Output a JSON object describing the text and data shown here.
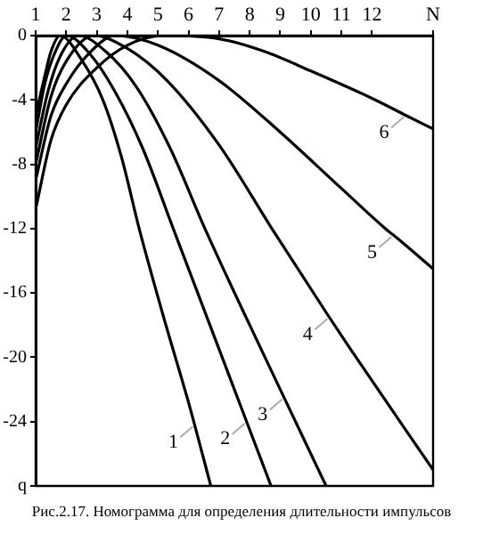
{
  "chart_data": {
    "type": "line",
    "series": [
      {
        "color": "#000000",
        "x": [
          1,
          1.3,
          1.5,
          1.8,
          2.5,
          3.2,
          3.8,
          4.4,
          5.2,
          6.0,
          6.2,
          6.73
        ],
        "values": [
          -5,
          -2.5,
          -1,
          0,
          -1.5,
          -4,
          -7.5,
          -12.1,
          -17.6,
          -22.8,
          -24.2,
          -28
        ]
      },
      {
        "color": "#000000",
        "x": [
          1,
          1.3,
          1.6,
          2.0,
          2.8,
          3.6,
          4.5,
          5.52,
          7.1,
          7.9,
          8.7
        ],
        "values": [
          -6,
          -3,
          -1.2,
          0,
          -1.2,
          -3.5,
          -7,
          -12.1,
          -20,
          -24,
          -28
        ]
      },
      {
        "color": "#000000",
        "x": [
          1,
          1.4,
          1.8,
          2.4,
          3.3,
          4.3,
          5.4,
          6.56,
          8.5,
          9.125,
          10.5
        ],
        "values": [
          -7,
          -3.5,
          -1.3,
          0,
          -1,
          -3.2,
          -7,
          -12.1,
          -20,
          -22.5,
          -28
        ]
      },
      {
        "color": "#000000",
        "x": [
          1,
          1.5,
          2.0,
          2.9,
          4,
          5.3,
          7,
          8.76,
          10.6,
          11.3,
          14
        ],
        "values": [
          -8,
          -3.8,
          -1.6,
          0,
          -0.8,
          -2.8,
          -6.8,
          -12.1,
          -17.5,
          -19.5,
          -27
        ]
      },
      {
        "color": "#000000",
        "x": [
          1,
          1.5,
          2.0,
          2.8,
          3.6,
          5,
          7,
          9,
          11,
          12.5,
          12.7,
          14
        ],
        "values": [
          -9,
          -5,
          -3,
          -1,
          0,
          -0.6,
          -2.8,
          -6,
          -9.5,
          -12.1,
          -12.4,
          -14.5
        ]
      },
      {
        "color": "#000000",
        "x": [
          1,
          1.5,
          2,
          3,
          4,
          5.2,
          7,
          8.5,
          10,
          12,
          13.1,
          14
        ],
        "values": [
          -10.8,
          -6.5,
          -4.3,
          -2,
          -0.6,
          0,
          -0.2,
          -1,
          -2.2,
          -3.9,
          -4.95,
          -5.8
        ]
      }
    ],
    "xlim": [
      1,
      14
    ],
    "xticks": [
      1,
      2,
      3,
      4,
      5,
      6,
      7,
      8,
      9,
      10,
      11,
      12,
      {
        "value": 14,
        "label": "N"
      }
    ],
    "ylim": [
      -28,
      0
    ],
    "yticks": [
      0,
      -4,
      -8,
      -12,
      -16,
      -20,
      -24,
      {
        "value": -28,
        "label": "q"
      }
    ],
    "grid": false,
    "legend": false,
    "marker": "none",
    "line_style": "solid",
    "annotations": [
      {
        "text": "1",
        "x": 6.2,
        "y": -24.2
      },
      {
        "text": "2",
        "x": 7.9,
        "y": -24
      },
      {
        "text": "3",
        "x": 9.125,
        "y": -22.5
      },
      {
        "text": "4",
        "x": 10.6,
        "y": -17.5
      },
      {
        "text": "5",
        "x": 12.7,
        "y": -12.4
      },
      {
        "text": "6",
        "x": 13.1,
        "y": -4.95
      },
      "Рис.2.17. Номограмма для определения длительности импульсов"
    ]
  }
}
